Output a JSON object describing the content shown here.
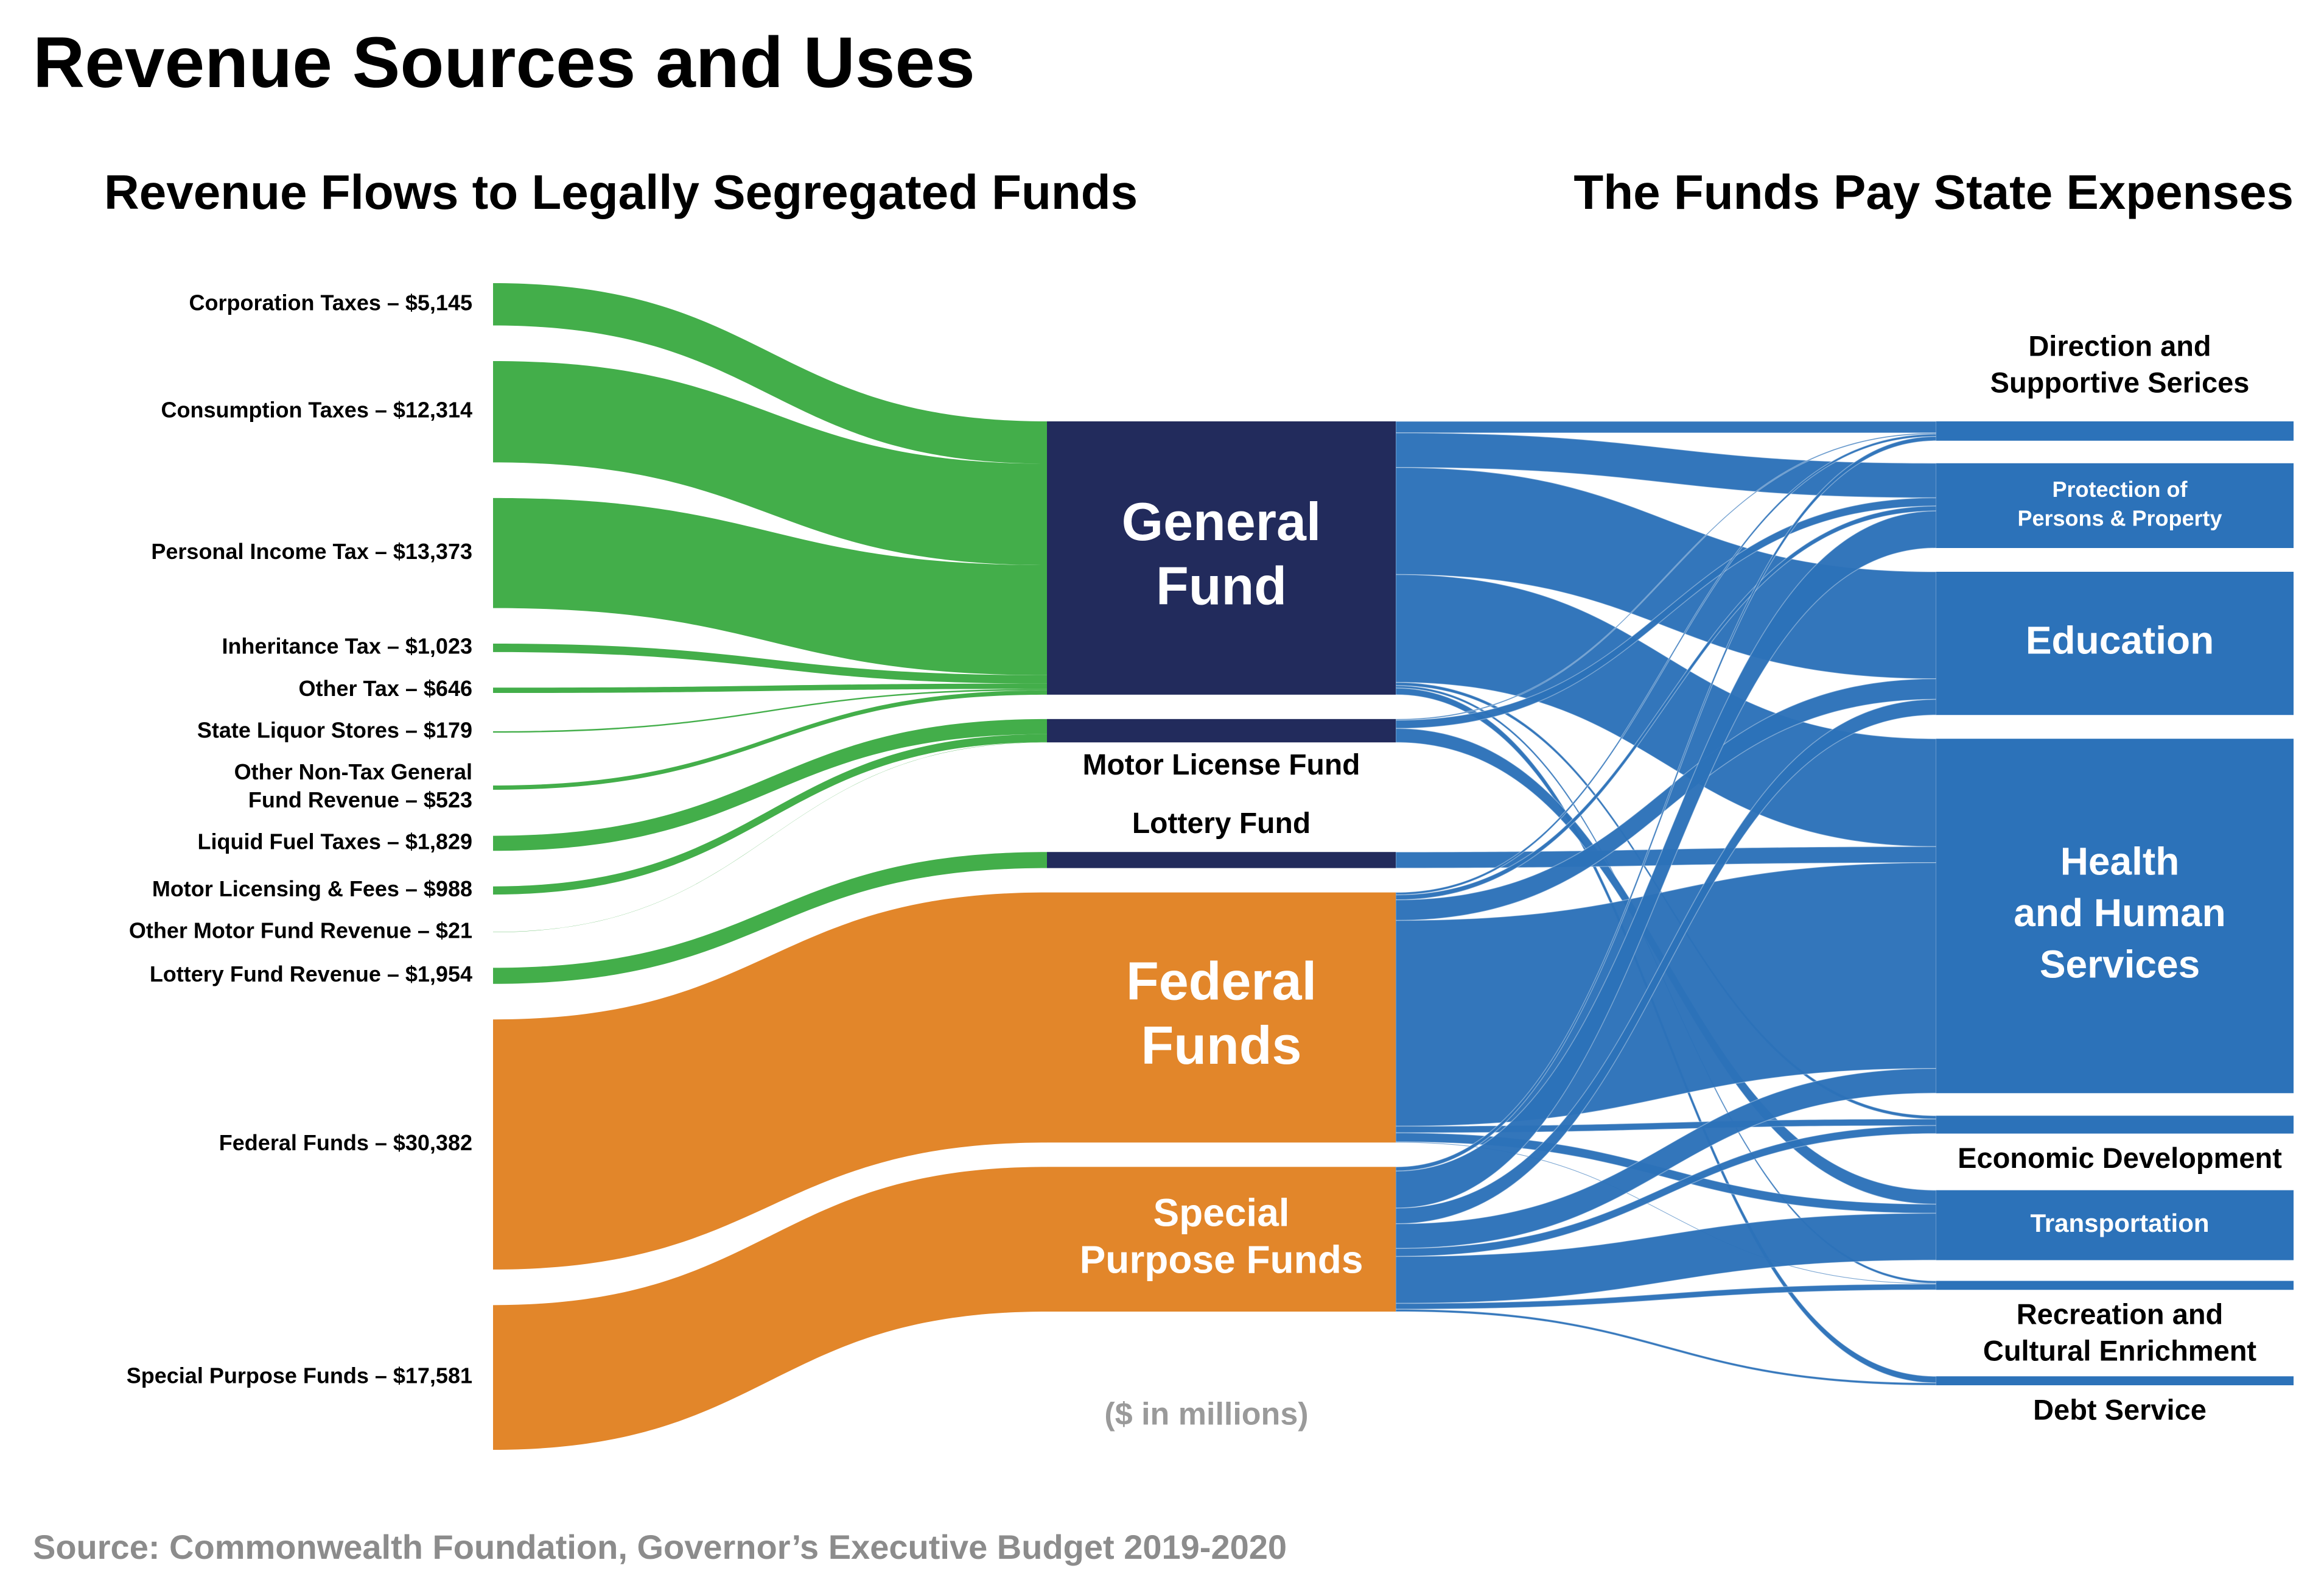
{
  "chart_data": {
    "type": "sankey",
    "title": "Revenue Sources and Uses",
    "subtitle_left": "Revenue Flows to Legally Segregated Funds",
    "subtitle_right": "The Funds Pay State Expenses",
    "note": "($ in millions)",
    "source": "Source: Commonwealth Foundation, Governor’s Executive Budget 2019-2020",
    "uses_color": "#2c72b9",
    "uses": [
      {
        "label": [
          "Direction and",
          "Supportive Serices"
        ]
      },
      {
        "label": [
          "Protection of",
          "Persons & Property"
        ]
      },
      {
        "label": [
          "Education"
        ]
      },
      {
        "label": [
          "Health",
          "and Human",
          "Services"
        ]
      },
      {
        "label": [
          "Economic Development"
        ]
      },
      {
        "label": [
          "Transportation"
        ]
      },
      {
        "label": [
          "Recreation and",
          "Cultural Enrichment"
        ]
      },
      {
        "label": [
          "Debt Service"
        ]
      }
    ],
    "funds": [
      {
        "label": [
          "General",
          "Fund"
        ],
        "color": "#222b5c",
        "source_color": "#43ae4a",
        "sources": [
          {
            "label": [
              "Corporation Taxes – $5,145"
            ],
            "value": 5145
          },
          {
            "label": [
              "Consumption Taxes – $12,314"
            ],
            "value": 12314
          },
          {
            "label": [
              "Personal Income Tax – $13,373"
            ],
            "value": 13373
          },
          {
            "label": [
              "Inheritance Tax – $1,023"
            ],
            "value": 1023
          },
          {
            "label": [
              "Other Tax – $646"
            ],
            "value": 646
          },
          {
            "label": [
              "State Liquor Stores – $179"
            ],
            "value": 179
          },
          {
            "label": [
              "Other Non-Tax General",
              "Fund Revenue – $523"
            ],
            "value": 523
          }
        ],
        "uses": [
          1400,
          4200,
          13000,
          13103,
          400,
          null,
          300,
          800
        ]
      },
      {
        "label": [
          "Motor License Fund"
        ],
        "color": "#222b5c",
        "source_color": "#43ae4a",
        "sources": [
          {
            "label": [
              "Liquid Fuel Taxes – $1,829"
            ],
            "value": 1829
          },
          {
            "label": [
              "Motor Licensing & Fees – $988"
            ],
            "value": 988
          },
          {
            "label": [
              "Other Motor Fund Revenue – $21"
            ],
            "value": 21
          }
        ],
        "uses": [
          138,
          1000,
          null,
          null,
          null,
          1700,
          null,
          null
        ]
      },
      {
        "label": [
          "Lottery Fund"
        ],
        "color": "#222b5c",
        "source_color": "#43ae4a",
        "sources": [
          {
            "label": [
              "Lottery Fund Revenue – $1,954"
            ],
            "value": 1954
          }
        ],
        "uses": [
          null,
          null,
          null,
          1954,
          null,
          null,
          null,
          null
        ]
      },
      {
        "label": [
          "Federal",
          "Funds"
        ],
        "color": "#e2862a",
        "source_color": "#e2862a",
        "sources": [
          {
            "label": [
              "Federal Funds – $30,382"
            ],
            "value": 30382
          }
        ],
        "uses": [
          300,
          600,
          2500,
          25000,
          800,
          1100,
          82,
          null
        ]
      },
      {
        "label": [
          "Special",
          "Purpose Funds"
        ],
        "color": "#e2862a",
        "source_color": "#e2862a",
        "sources": [
          {
            "label": [
              "Special Purpose Funds – $17,581"
            ],
            "value": 17581
          }
        ],
        "uses": [
          512,
          4500,
          1900,
          3001,
          970,
          5700,
          708,
          290
        ]
      }
    ]
  }
}
